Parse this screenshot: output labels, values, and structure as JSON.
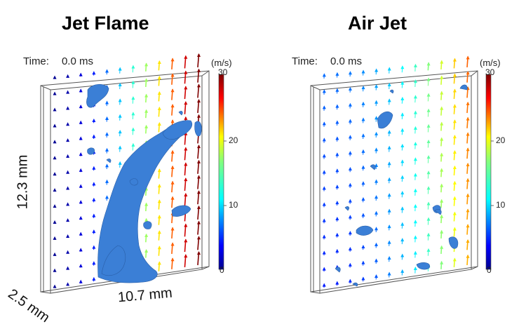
{
  "panels": [
    {
      "title": "Jet Flame",
      "time_label": "Time:",
      "time_value": "0.0 ms"
    },
    {
      "title": "Air Jet",
      "time_label": "Time:",
      "time_value": "0.0 ms"
    }
  ],
  "colorbar": {
    "unit": "(m/s)",
    "ticks": [
      "30",
      "20",
      "10",
      "0"
    ],
    "max": 30,
    "min": 0
  },
  "dimensions": {
    "height": "12.3 mm",
    "width": "10.7 mm",
    "depth": "2.5 mm"
  },
  "colors": {
    "isosurface": "#3b7fd6",
    "frame": "#555555"
  }
}
